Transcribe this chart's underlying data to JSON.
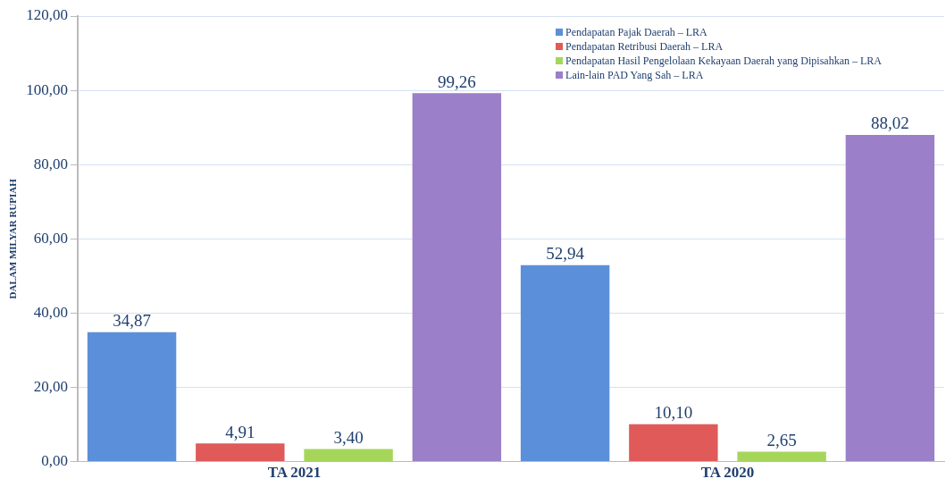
{
  "chart_data": {
    "type": "bar",
    "ylabel": "DALAM MILYAR RUPIAH",
    "categories": [
      "TA 2021",
      "TA 2020"
    ],
    "series": [
      {
        "name": "Pendapatan Pajak Daerah – LRA",
        "color": "#5b8fd9",
        "values": [
          34.87,
          52.94
        ],
        "value_labels": [
          "34,87",
          "52,94"
        ]
      },
      {
        "name": "Pendapatan Retribusi Daerah – LRA",
        "color": "#e05a5a",
        "values": [
          4.91,
          10.1
        ],
        "value_labels": [
          "4,91",
          "10,10"
        ]
      },
      {
        "name": "Pendapatan Hasil Pengelolaan Kekayaan Daerah yang Dipisahkan – LRA",
        "color": "#a5d65a",
        "values": [
          3.4,
          2.65
        ],
        "value_labels": [
          "3,40",
          "2,65"
        ]
      },
      {
        "name": "Lain-lain PAD Yang Sah – LRA",
        "color": "#9b7fc8",
        "values": [
          99.26,
          88.02
        ],
        "value_labels": [
          "99,26",
          "88,02"
        ]
      }
    ],
    "ylim": [
      0,
      120
    ],
    "yticks": [
      {
        "value": 0,
        "label": "0,00"
      },
      {
        "value": 20,
        "label": "20,00"
      },
      {
        "value": 40,
        "label": "40,00"
      },
      {
        "value": 60,
        "label": "60,00"
      },
      {
        "value": 80,
        "label": "80,00"
      },
      {
        "value": 100,
        "label": "100,00"
      },
      {
        "value": 120,
        "label": "120,00"
      }
    ],
    "grid": "y",
    "legend": "top right"
  }
}
